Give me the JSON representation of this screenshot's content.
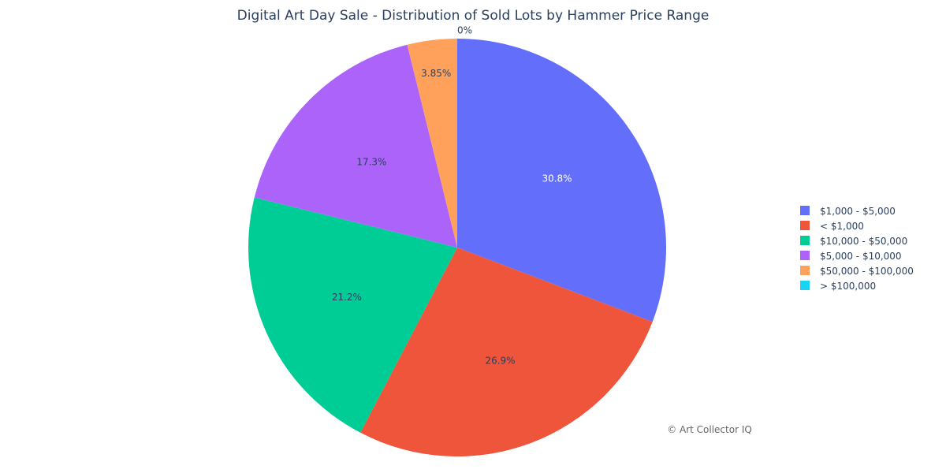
{
  "chart_data": {
    "type": "pie",
    "title": "Digital Art Day Sale - Distribution of Sold Lots by Hammer Price Range",
    "slices": [
      {
        "label": "$1,000 - $5,000",
        "value": 30.8,
        "text": "30.8%",
        "color": "#636efa",
        "text_color": "#ffffff"
      },
      {
        "label": "< $1,000",
        "value": 26.9,
        "text": "26.9%",
        "color": "#ef553b",
        "text_color": "#2a3f5f"
      },
      {
        "label": "$10,000 - $50,000",
        "value": 21.2,
        "text": "21.2%",
        "color": "#00cc96",
        "text_color": "#2a3f5f"
      },
      {
        "label": "$5,000 - $10,000",
        "value": 17.3,
        "text": "17.3%",
        "color": "#ab63fa",
        "text_color": "#2a3f5f"
      },
      {
        "label": "$50,000 - $100,000",
        "value": 3.85,
        "text": "3.85%",
        "color": "#ffa15a",
        "text_color": "#2a3f5f"
      },
      {
        "label": "> $100,000",
        "value": 0,
        "text": "0%",
        "color": "#19d3f3",
        "text_color": "#2a3f5f"
      }
    ],
    "direction": "clockwise",
    "legend_position": "right",
    "annotation": "© Art Collector IQ"
  }
}
